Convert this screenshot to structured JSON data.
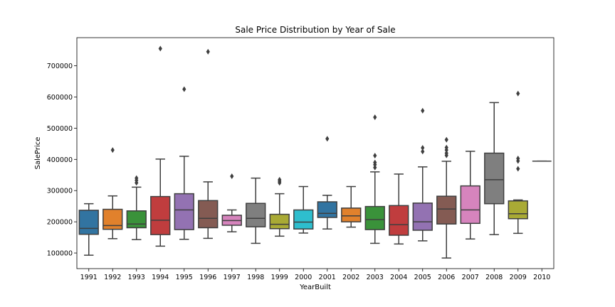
{
  "chart_data": {
    "type": "box",
    "title": "Sale Price Distribution by Year of Sale",
    "xlabel": "YearBuilt",
    "ylabel": "SalePrice",
    "ylim": [
      50000,
      790000
    ],
    "yticks": [
      100000,
      200000,
      300000,
      400000,
      500000,
      600000,
      700000
    ],
    "grid": false,
    "legend": "none",
    "categories": [
      "1991",
      "1992",
      "1993",
      "1994",
      "1995",
      "1996",
      "1997",
      "1998",
      "1999",
      "2000",
      "2001",
      "2002",
      "2003",
      "2004",
      "2005",
      "2006",
      "2007",
      "2008",
      "2009",
      "2010"
    ],
    "boxes": [
      {
        "category": "1991",
        "whisker_low": 93000,
        "q1": 160000,
        "median": 179000,
        "q3": 237000,
        "whisker_high": 258000,
        "outliers": [],
        "color": "#3274a1"
      },
      {
        "category": "1992",
        "whisker_low": 146000,
        "q1": 176000,
        "median": 188000,
        "q3": 240000,
        "whisker_high": 283000,
        "outliers": [
          430000
        ],
        "color": "#e1812c"
      },
      {
        "category": "1993",
        "whisker_low": 143000,
        "q1": 181000,
        "median": 193000,
        "q3": 235000,
        "whisker_high": 311000,
        "outliers": [
          325000,
          333000,
          340000
        ],
        "color": "#3a923a"
      },
      {
        "category": "1994",
        "whisker_low": 122000,
        "q1": 159000,
        "median": 205000,
        "q3": 281000,
        "whisker_high": 401000,
        "outliers": [
          755000
        ],
        "color": "#c03d3e"
      },
      {
        "category": "1995",
        "whisker_low": 144000,
        "q1": 175000,
        "median": 238000,
        "q3": 290000,
        "whisker_high": 410000,
        "outliers": [
          625000
        ],
        "color": "#9372b2"
      },
      {
        "category": "1996",
        "whisker_low": 147000,
        "q1": 181000,
        "median": 211000,
        "q3": 268000,
        "whisker_high": 328000,
        "outliers": [
          745000
        ],
        "color": "#845b53"
      },
      {
        "category": "1997",
        "whisker_low": 168000,
        "q1": 189000,
        "median": 204000,
        "q3": 221000,
        "whisker_high": 238000,
        "outliers": [
          346000
        ],
        "color": "#d684bd"
      },
      {
        "category": "1998",
        "whisker_low": 131000,
        "q1": 184000,
        "median": 211000,
        "q3": 259000,
        "whisker_high": 340000,
        "outliers": [],
        "color": "#7f7f7f"
      },
      {
        "category": "1999",
        "whisker_low": 154000,
        "q1": 178000,
        "median": 192000,
        "q3": 224000,
        "whisker_high": 290000,
        "outliers": [
          325000,
          330000,
          335000
        ],
        "color": "#a9aa35"
      },
      {
        "category": "2000",
        "whisker_low": 164000,
        "q1": 177000,
        "median": 199000,
        "q3": 238000,
        "whisker_high": 313000,
        "outliers": [],
        "color": "#2ebece"
      },
      {
        "category": "2001",
        "whisker_low": 177000,
        "q1": 214000,
        "median": 227000,
        "q3": 264000,
        "whisker_high": 285000,
        "outliers": [
          466000
        ],
        "color": "#3274a1"
      },
      {
        "category": "2002",
        "whisker_low": 183000,
        "q1": 200000,
        "median": 219000,
        "q3": 244000,
        "whisker_high": 313000,
        "outliers": [],
        "color": "#e1812c"
      },
      {
        "category": "2003",
        "whisker_low": 131000,
        "q1": 175000,
        "median": 207000,
        "q3": 249000,
        "whisker_high": 360000,
        "outliers": [
          374000,
          383000,
          390000,
          412000,
          535000
        ],
        "color": "#3a923a"
      },
      {
        "category": "2004",
        "whisker_low": 129000,
        "q1": 157000,
        "median": 191000,
        "q3": 252000,
        "whisker_high": 353000,
        "outliers": [],
        "color": "#c03d3e"
      },
      {
        "category": "2005",
        "whisker_low": 139000,
        "q1": 173000,
        "median": 200000,
        "q3": 260000,
        "whisker_high": 376000,
        "outliers": [
          425000,
          437000,
          556000
        ],
        "color": "#9372b2"
      },
      {
        "category": "2006",
        "whisker_low": 84000,
        "q1": 193000,
        "median": 241000,
        "q3": 282000,
        "whisker_high": 394000,
        "outliers": [
          413000,
          420000,
          430000,
          438000,
          463000
        ],
        "color": "#845b53"
      },
      {
        "category": "2007",
        "whisker_low": 145000,
        "q1": 195000,
        "median": 238000,
        "q3": 315000,
        "whisker_high": 426000,
        "outliers": [],
        "color": "#d684bd"
      },
      {
        "category": "2008",
        "whisker_low": 159000,
        "q1": 258000,
        "median": 335000,
        "q3": 420000,
        "whisker_high": 582000,
        "outliers": [],
        "color": "#7f7f7f"
      },
      {
        "category": "2009",
        "whisker_low": 163000,
        "q1": 210000,
        "median": 226000,
        "q3": 267000,
        "whisker_high": 270000,
        "outliers": [
          370000,
          395000,
          403000,
          611000
        ],
        "color": "#a9aa35"
      },
      {
        "category": "2010",
        "whisker_low": 394500,
        "q1": 394500,
        "median": 394500,
        "q3": 394500,
        "whisker_high": 394500,
        "outliers": [],
        "color": "#2ebece"
      }
    ]
  }
}
